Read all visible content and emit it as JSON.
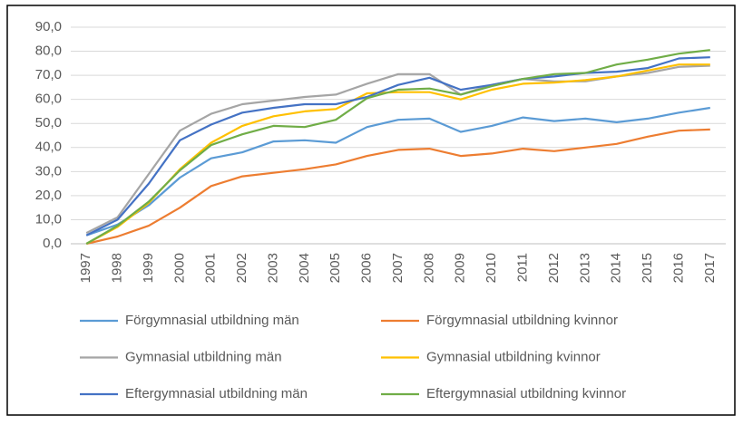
{
  "chart_data": {
    "type": "line",
    "categories": [
      "1997",
      "1998",
      "1999",
      "2000",
      "2001",
      "2002",
      "2003",
      "2004",
      "2005",
      "2006",
      "2007",
      "2008",
      "2009",
      "2010",
      "2011",
      "2012",
      "2013",
      "2014",
      "2015",
      "2016",
      "2017"
    ],
    "ylim": [
      0,
      90
    ],
    "yticks": [
      {
        "value": 0,
        "label": "0,0"
      },
      {
        "value": 10,
        "label": "10,0"
      },
      {
        "value": 20,
        "label": "20,0"
      },
      {
        "value": 30,
        "label": "30,0"
      },
      {
        "value": 40,
        "label": "40,0"
      },
      {
        "value": 50,
        "label": "50,0"
      },
      {
        "value": 60,
        "label": "60,0"
      },
      {
        "value": 70,
        "label": "70,0"
      },
      {
        "value": 80,
        "label": "80,0"
      },
      {
        "value": 90,
        "label": "90,0"
      }
    ],
    "grid": true,
    "legend": "bottom",
    "series": [
      {
        "name": "Förgymnasial utbildning män",
        "color": "#5b9bd5",
        "values": [
          3.5,
          8,
          16,
          27.5,
          35.5,
          38,
          42.5,
          43,
          42,
          48.5,
          51.5,
          52,
          46.5,
          49,
          52.5,
          51,
          52,
          50.5,
          52,
          54.5,
          56.5
        ]
      },
      {
        "name": "Förgymnasial utbildning kvinnor",
        "color": "#ed7d31",
        "values": [
          0,
          3,
          7.5,
          15,
          24,
          28,
          29.5,
          31,
          33,
          36.5,
          39,
          39.5,
          36.5,
          37.5,
          39.5,
          38.5,
          40,
          41.5,
          44.5,
          47,
          47.5
        ]
      },
      {
        "name": "Gymnasial utbildning män",
        "color": "#a5a5a5",
        "values": [
          4.5,
          11,
          29,
          47,
          54,
          58,
          59.5,
          61,
          62,
          66.5,
          70.5,
          70.5,
          62,
          66,
          68.5,
          67.5,
          67.5,
          69.5,
          71,
          73.5,
          74
        ]
      },
      {
        "name": "Gymnasial utbildning kvinnor",
        "color": "#ffc000",
        "values": [
          0,
          7,
          17,
          31,
          42,
          49,
          53,
          55,
          56,
          62.5,
          63,
          63,
          60,
          64,
          66.5,
          67,
          68,
          69.5,
          72,
          74.5,
          74.5
        ]
      },
      {
        "name": "Eftergymnasial utbildning män",
        "color": "#4472c4",
        "values": [
          3.5,
          10,
          25,
          43,
          49.5,
          54.5,
          56.5,
          58,
          58,
          61,
          66,
          69,
          64,
          66,
          68.5,
          69.5,
          71,
          71.5,
          73,
          77,
          77.5
        ]
      },
      {
        "name": "Eftergymnasial utbildning kvinnor",
        "color": "#70ad47",
        "values": [
          0,
          7.5,
          17.5,
          30.5,
          41,
          45.5,
          49,
          48.5,
          51.5,
          60.5,
          64,
          64.5,
          62,
          65.5,
          68.5,
          70.5,
          71,
          74.5,
          76.5,
          79,
          80.5
        ]
      }
    ]
  }
}
